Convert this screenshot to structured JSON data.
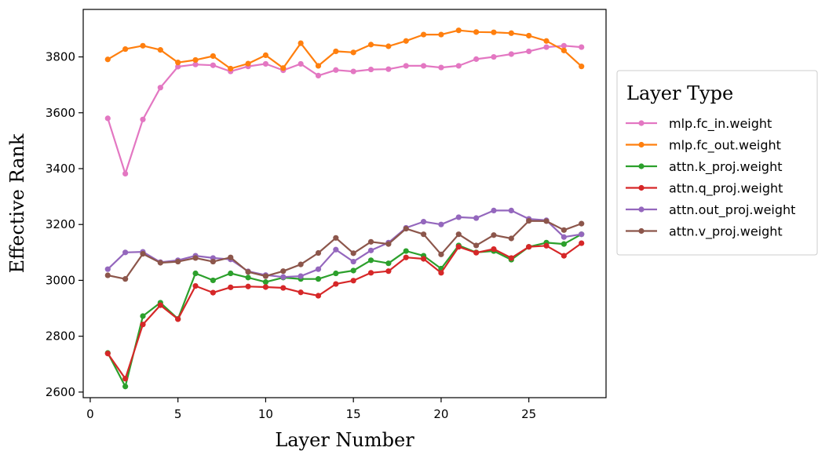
{
  "chart_data": {
    "type": "line",
    "xlabel": "Layer Number",
    "ylabel": "Effective Rank",
    "xlim": [
      -0.4,
      29.4
    ],
    "ylim": [
      2580,
      3970
    ],
    "xticks": [
      0,
      5,
      10,
      15,
      20,
      25
    ],
    "yticks": [
      2600,
      2800,
      3000,
      3200,
      3400,
      3600,
      3800
    ],
    "grid": false,
    "legend": {
      "title": "Layer Type",
      "placement": "right-outside"
    },
    "x": [
      1,
      2,
      3,
      4,
      5,
      6,
      7,
      8,
      9,
      10,
      11,
      12,
      13,
      14,
      15,
      16,
      17,
      18,
      19,
      20,
      21,
      22,
      23,
      24,
      25,
      26,
      27,
      28
    ],
    "series": [
      {
        "name": "mlp.fc_in.weight",
        "color": "#e377c2",
        "values": [
          3580,
          3382,
          3576,
          3690,
          3765,
          3773,
          3770,
          3748,
          3766,
          3775,
          3752,
          3775,
          3733,
          3753,
          3748,
          3755,
          3756,
          3768,
          3768,
          3762,
          3768,
          3792,
          3800,
          3810,
          3820,
          3835,
          3840,
          3835
        ]
      },
      {
        "name": "mlp.fc_out.weight",
        "color": "#ff7f0e",
        "values": [
          3791,
          3828,
          3840,
          3825,
          3780,
          3789,
          3803,
          3758,
          3776,
          3806,
          3760,
          3849,
          3768,
          3820,
          3816,
          3844,
          3838,
          3857,
          3880,
          3880,
          3895,
          3889,
          3888,
          3885,
          3876,
          3857,
          3823,
          3766
        ]
      },
      {
        "name": "attn.k_proj.weight",
        "color": "#2ca02c",
        "values": [
          2740,
          2620,
          2872,
          2920,
          2862,
          3025,
          3000,
          3025,
          3010,
          2994,
          3010,
          3005,
          3005,
          3025,
          3035,
          3072,
          3061,
          3105,
          3088,
          3042,
          3125,
          3100,
          3105,
          3074,
          3120,
          3135,
          3130,
          3165
        ]
      },
      {
        "name": "attn.q_proj.weight",
        "color": "#d62728",
        "values": [
          2738,
          2648,
          2842,
          2911,
          2861,
          2980,
          2956,
          2975,
          2978,
          2976,
          2973,
          2957,
          2945,
          2987,
          2999,
          3027,
          3033,
          3082,
          3077,
          3027,
          3120,
          3099,
          3112,
          3080,
          3120,
          3124,
          3088,
          3133
        ]
      },
      {
        "name": "attn.out_proj.weight",
        "color": "#9467bd",
        "values": [
          3040,
          3100,
          3102,
          3065,
          3072,
          3088,
          3080,
          3075,
          3032,
          3019,
          3012,
          3015,
          3040,
          3110,
          3067,
          3107,
          3135,
          3188,
          3210,
          3200,
          3226,
          3223,
          3250,
          3250,
          3220,
          3215,
          3155,
          3165
        ]
      },
      {
        "name": "attn.v_proj.weight",
        "color": "#8c564b",
        "values": [
          3018,
          3005,
          3095,
          3063,
          3067,
          3080,
          3067,
          3082,
          3030,
          3015,
          3033,
          3057,
          3098,
          3152,
          3097,
          3138,
          3130,
          3185,
          3165,
          3093,
          3165,
          3125,
          3162,
          3150,
          3213,
          3212,
          3180,
          3203
        ]
      }
    ]
  }
}
